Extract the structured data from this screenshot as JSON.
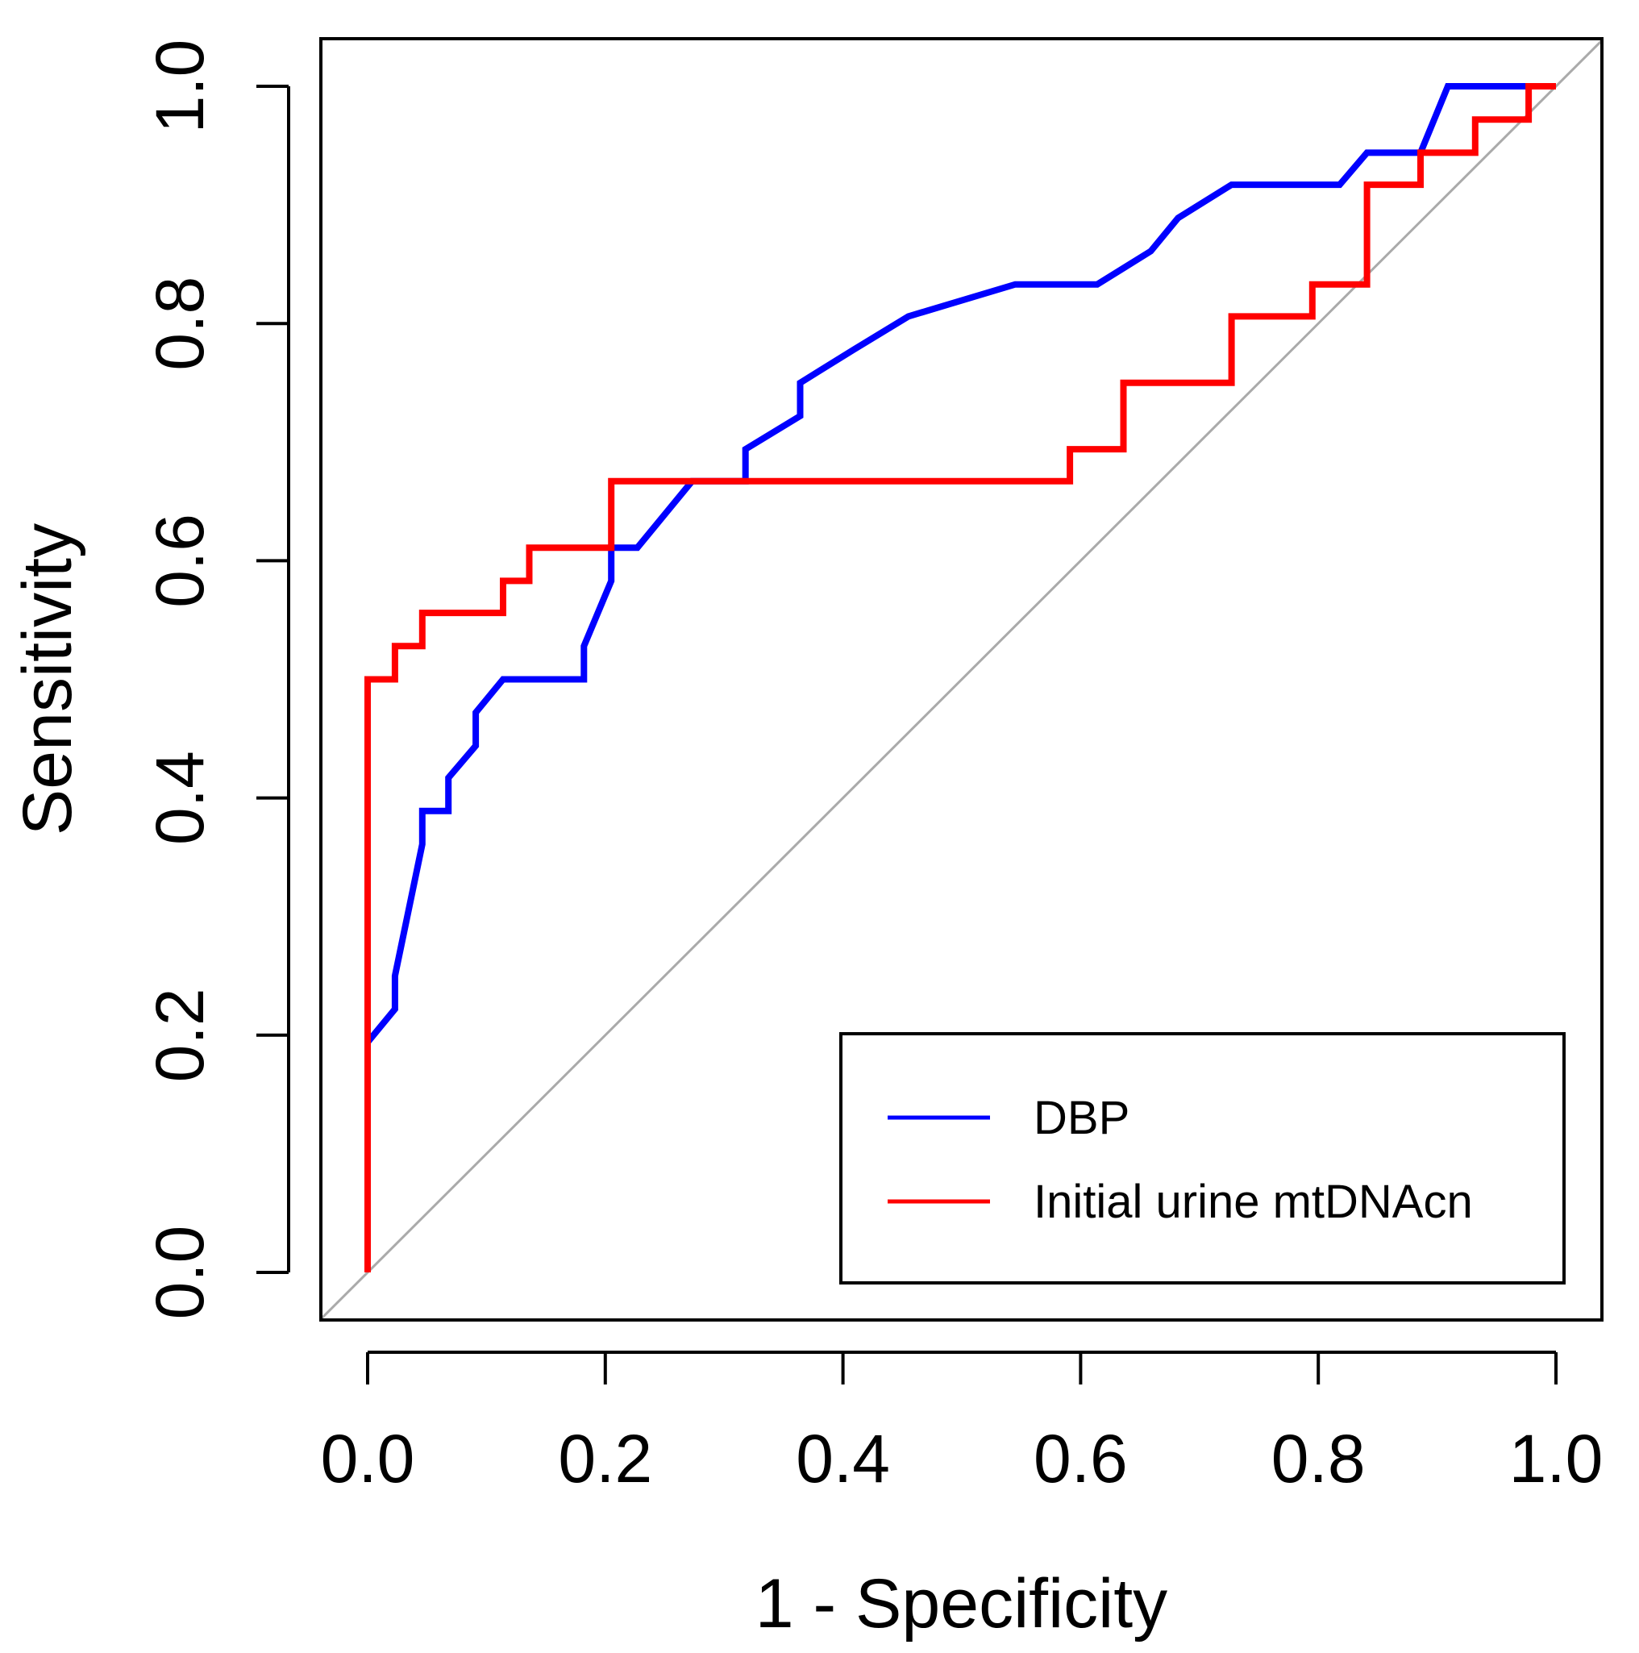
{
  "chart_data": {
    "type": "line",
    "title": "",
    "xlabel": "1 - Specificity",
    "ylabel": "Sensitivity",
    "xlim": [
      0,
      1
    ],
    "ylim": [
      0,
      1
    ],
    "x_ticks": [
      "0.0",
      "0.2",
      "0.4",
      "0.6",
      "0.8",
      "1.0"
    ],
    "y_ticks": [
      "0.0",
      "0.2",
      "0.4",
      "0.6",
      "0.8",
      "1.0"
    ],
    "grid": false,
    "legend_position": "bottom-right",
    "reference_line": {
      "name": "chance diagonal",
      "color": "#aaaaaa",
      "points": [
        [
          -0.04,
          -0.04
        ],
        [
          1.04,
          1.04
        ]
      ]
    },
    "series": [
      {
        "name": "DBP",
        "color": "#0000ff",
        "points": [
          [
            0,
            0
          ],
          [
            0,
            0.194
          ],
          [
            0.023,
            0.222
          ],
          [
            0.023,
            0.25
          ],
          [
            0.046,
            0.361
          ],
          [
            0.046,
            0.389
          ],
          [
            0.068,
            0.389
          ],
          [
            0.068,
            0.417
          ],
          [
            0.091,
            0.444
          ],
          [
            0.091,
            0.472
          ],
          [
            0.114,
            0.5
          ],
          [
            0.182,
            0.5
          ],
          [
            0.182,
            0.528
          ],
          [
            0.205,
            0.583
          ],
          [
            0.205,
            0.611
          ],
          [
            0.227,
            0.611
          ],
          [
            0.273,
            0.667
          ],
          [
            0.318,
            0.667
          ],
          [
            0.318,
            0.694
          ],
          [
            0.364,
            0.722
          ],
          [
            0.364,
            0.75
          ],
          [
            0.409,
            0.778
          ],
          [
            0.455,
            0.806
          ],
          [
            0.545,
            0.833
          ],
          [
            0.614,
            0.833
          ],
          [
            0.659,
            0.861
          ],
          [
            0.682,
            0.889
          ],
          [
            0.727,
            0.917
          ],
          [
            0.818,
            0.917
          ],
          [
            0.841,
            0.944
          ],
          [
            0.886,
            0.944
          ],
          [
            0.909,
            1.0
          ],
          [
            1.0,
            1.0
          ]
        ]
      },
      {
        "name": "Initial urine mtDNAcn",
        "color": "#ff0000",
        "points": [
          [
            0,
            0
          ],
          [
            0,
            0.5
          ],
          [
            0.023,
            0.5
          ],
          [
            0.023,
            0.528
          ],
          [
            0.046,
            0.528
          ],
          [
            0.046,
            0.556
          ],
          [
            0.114,
            0.556
          ],
          [
            0.114,
            0.583
          ],
          [
            0.136,
            0.583
          ],
          [
            0.136,
            0.611
          ],
          [
            0.205,
            0.611
          ],
          [
            0.205,
            0.667
          ],
          [
            0.591,
            0.667
          ],
          [
            0.591,
            0.694
          ],
          [
            0.636,
            0.694
          ],
          [
            0.636,
            0.75
          ],
          [
            0.727,
            0.75
          ],
          [
            0.727,
            0.806
          ],
          [
            0.795,
            0.806
          ],
          [
            0.795,
            0.833
          ],
          [
            0.841,
            0.833
          ],
          [
            0.841,
            0.917
          ],
          [
            0.886,
            0.917
          ],
          [
            0.886,
            0.944
          ],
          [
            0.932,
            0.944
          ],
          [
            0.932,
            0.972
          ],
          [
            0.977,
            0.972
          ],
          [
            0.977,
            1.0
          ],
          [
            1.0,
            1.0
          ]
        ]
      }
    ]
  }
}
